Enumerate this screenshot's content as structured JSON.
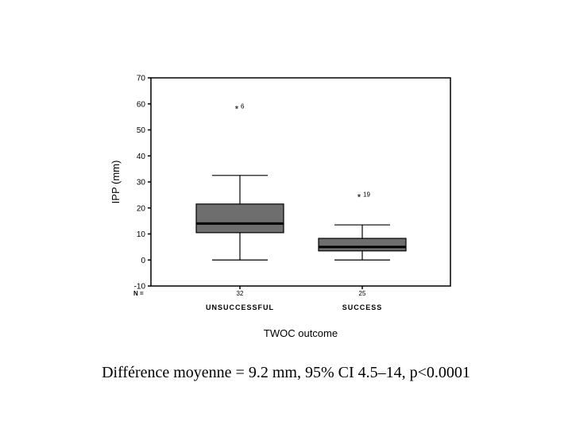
{
  "chart_data": {
    "type": "boxplot",
    "title": "",
    "xlabel": "TWOC outcome",
    "ylabel": "IPP (mm)",
    "ylim": [
      -10,
      70
    ],
    "yticks": [
      -10,
      0,
      10,
      20,
      30,
      40,
      50,
      60,
      70
    ],
    "n_label": "N =",
    "categories": [
      "UNSUCCESSFUL",
      "SUCCESS"
    ],
    "groups": [
      {
        "name": "UNSUCCESSFUL",
        "n": "32",
        "whisker_low": 0,
        "q1": 10.5,
        "median": 14,
        "q3": 21.5,
        "whisker_high": 32.5,
        "outliers": [
          {
            "value": 58,
            "marker": "*",
            "label": "6"
          }
        ]
      },
      {
        "name": "SUCCESS",
        "n": "25",
        "whisker_low": 0,
        "q1": 3.5,
        "median": 5,
        "q3": 8.3,
        "whisker_high": 13.5,
        "outliers": [
          {
            "value": 24,
            "marker": "*",
            "label": "19"
          }
        ]
      }
    ],
    "box_color": "#6e6e6e",
    "grid": false
  },
  "caption": "Différence moyenne = 9.2 mm, 95% CI 4.5–14, p<0.0001"
}
